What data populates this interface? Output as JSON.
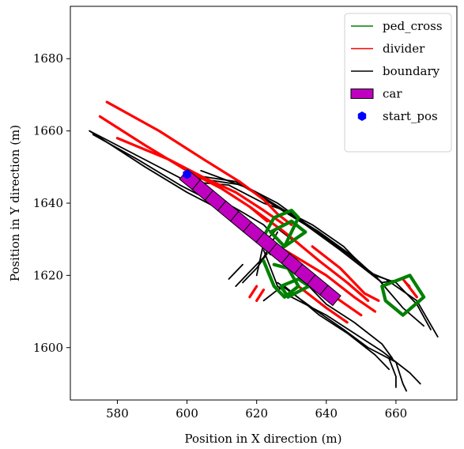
{
  "chart_data": {
    "type": "line",
    "title": "",
    "xlabel": "Position in X direction (m)",
    "ylabel": "Position in Y direction (m)",
    "xlim": [
      566.5,
      677.5
    ],
    "ylim": [
      1585.5,
      1694.5
    ],
    "xticks": [
      580,
      600,
      620,
      640,
      660
    ],
    "yticks": [
      1600,
      1620,
      1640,
      1660,
      1680
    ],
    "grid": false,
    "legend": {
      "placement": "top-right",
      "entries": [
        {
          "name": "ped_cross",
          "kind": "line",
          "color": "#008000"
        },
        {
          "name": "divider",
          "kind": "line",
          "color": "#ff0000"
        },
        {
          "name": "boundary",
          "kind": "line",
          "color": "#000000"
        },
        {
          "name": "car",
          "kind": "patch",
          "color": "#c000c0"
        },
        {
          "name": "start_pos",
          "kind": "marker",
          "color": "#0000ff"
        }
      ]
    },
    "series": [
      {
        "name": "boundary",
        "color": "#000000",
        "width": 1.8,
        "polylines": [
          [
            [
              572,
              1660
            ],
            [
              590,
              1651
            ],
            [
              600,
              1646
            ],
            [
              615,
              1638
            ],
            [
              622,
              1634
            ],
            [
              626,
              1630
            ]
          ],
          [
            [
              572,
              1660
            ],
            [
              588,
              1650
            ],
            [
              600,
              1643
            ],
            [
              612,
              1637
            ],
            [
              620,
              1633
            ]
          ],
          [
            [
              573,
              1659
            ],
            [
              586,
              1652
            ],
            [
              598,
              1645
            ],
            [
              610,
              1639
            ]
          ],
          [
            [
              600,
              1646
            ],
            [
              612,
              1645
            ],
            [
              622,
              1640
            ],
            [
              628,
              1638
            ],
            [
              636,
              1634
            ],
            [
              645,
              1628
            ],
            [
              652,
              1621
            ],
            [
              656,
              1618
            ],
            [
              662,
              1619
            ]
          ],
          [
            [
              600,
              1648
            ],
            [
              614,
              1646
            ],
            [
              624,
              1640
            ],
            [
              634,
              1634
            ],
            [
              644,
              1627
            ],
            [
              652,
              1621
            ],
            [
              657,
              1619
            ],
            [
              666,
              1613
            ],
            [
              672,
              1603
            ]
          ],
          [
            [
              602,
              1647
            ],
            [
              616,
              1645
            ],
            [
              626,
              1640
            ],
            [
              636,
              1633
            ],
            [
              646,
              1626
            ],
            [
              654,
              1620
            ],
            [
              660,
              1618
            ],
            [
              666,
              1612
            ],
            [
              670,
              1605
            ]
          ],
          [
            [
              604,
              1649
            ],
            [
              618,
              1644
            ],
            [
              628,
              1638
            ],
            [
              638,
              1632
            ],
            [
              648,
              1625
            ],
            [
              656,
              1618
            ]
          ],
          [
            [
              622,
              1627
            ],
            [
              626,
              1617
            ],
            [
              630,
              1614
            ],
            [
              640,
              1609
            ],
            [
              648,
              1604
            ],
            [
              656,
              1599
            ],
            [
              664,
              1593
            ],
            [
              667,
              1590
            ]
          ],
          [
            [
              626,
              1618
            ],
            [
              636,
              1611
            ],
            [
              645,
              1605
            ],
            [
              652,
              1600
            ],
            [
              660,
              1596
            ]
          ],
          [
            [
              628,
              1617
            ],
            [
              638,
              1609
            ],
            [
              646,
              1604
            ],
            [
              654,
              1598
            ],
            [
              658,
              1594
            ]
          ],
          [
            [
              633,
              1619
            ],
            [
              640,
              1612
            ],
            [
              648,
              1607
            ],
            [
              656,
              1601
            ],
            [
              659,
              1597
            ]
          ],
          [
            [
              614,
              1617
            ],
            [
              618,
              1621
            ],
            [
              622,
              1625
            ],
            [
              626,
              1632
            ]
          ],
          [
            [
              616,
              1618
            ],
            [
              620,
              1622
            ],
            [
              623,
              1626
            ]
          ],
          [
            [
              612,
              1619
            ],
            [
              616,
              1623
            ]
          ],
          [
            [
              622,
              1613
            ],
            [
              626,
              1616
            ],
            [
              628,
              1617
            ]
          ],
          [
            [
              658,
              1597
            ],
            [
              660,
              1592
            ],
            [
              660,
              1589
            ]
          ],
          [
            [
              660,
              1596
            ],
            [
              662,
              1590
            ],
            [
              663,
              1588
            ]
          ],
          [
            [
              620,
              1620
            ],
            [
              622,
              1629
            ],
            [
              626,
              1633
            ],
            [
              630,
              1630
            ]
          ],
          [
            [
              662,
              1619
            ],
            [
              664,
              1617
            ]
          ],
          [
            [
              654,
              1620
            ],
            [
              662,
              1611
            ],
            [
              668,
              1606
            ]
          ]
        ]
      },
      {
        "name": "divider",
        "color": "#ff0000",
        "width": 3.2,
        "polylines": [
          [
            [
              577,
              1668
            ],
            [
              592,
              1660
            ],
            [
              605,
              1652
            ],
            [
              615,
              1646
            ],
            [
              622,
              1641
            ],
            [
              626,
              1637
            ],
            [
              630,
              1634
            ]
          ],
          [
            [
              575,
              1664
            ],
            [
              588,
              1656
            ],
            [
              600,
              1649
            ],
            [
              610,
              1644
            ],
            [
              618,
              1639
            ],
            [
              623,
              1635
            ]
          ],
          [
            [
              580,
              1658
            ],
            [
              595,
              1652
            ],
            [
              605,
              1647
            ],
            [
              614,
              1643
            ],
            [
              622,
              1638
            ],
            [
              628,
              1634
            ]
          ],
          [
            [
              618,
              1639
            ],
            [
              628,
              1632
            ],
            [
              638,
              1624
            ],
            [
              646,
              1618
            ],
            [
              652,
              1613
            ]
          ],
          [
            [
              627,
              1625
            ],
            [
              636,
              1619
            ],
            [
              644,
              1613
            ],
            [
              650,
              1609
            ]
          ],
          [
            [
              628,
              1627
            ],
            [
              640,
              1620
            ],
            [
              648,
              1614
            ],
            [
              654,
              1610
            ]
          ],
          [
            [
              636,
              1628
            ],
            [
              644,
              1622
            ],
            [
              651,
              1615
            ],
            [
              655,
              1613
            ]
          ],
          [
            [
              632,
              1617
            ],
            [
              640,
              1611
            ],
            [
              646,
              1607
            ]
          ],
          [
            [
              618,
              1614
            ],
            [
              620,
              1617
            ]
          ],
          [
            [
              620,
              1613
            ],
            [
              622,
              1616
            ]
          ],
          [
            [
              662,
              1619
            ],
            [
              666,
              1614
            ]
          ]
        ]
      },
      {
        "name": "ped_cross",
        "color": "#008000",
        "width": 4.2,
        "polylines": [
          [
            [
              621,
              1629
            ],
            [
              625,
              1636
            ],
            [
              630,
              1638
            ],
            [
              632,
              1636
            ],
            [
              628,
              1628
            ],
            [
              624,
              1626
            ],
            [
              621,
              1629
            ]
          ],
          [
            [
              624,
              1632
            ],
            [
              630,
              1635
            ],
            [
              634,
              1632
            ],
            [
              628,
              1628
            ],
            [
              624,
              1632
            ]
          ],
          [
            [
              622,
              1624
            ],
            [
              625,
              1617
            ],
            [
              628,
              1614
            ],
            [
              632,
              1617
            ],
            [
              629,
              1622
            ],
            [
              625,
              1623
            ]
          ],
          [
            [
              627,
              1617
            ],
            [
              632,
              1619
            ],
            [
              635,
              1617
            ],
            [
              629,
              1614
            ],
            [
              627,
              1617
            ]
          ],
          [
            [
              656,
              1617
            ],
            [
              664,
              1620
            ],
            [
              668,
              1614
            ],
            [
              662,
              1609
            ],
            [
              657,
              1613
            ],
            [
              656,
              1617
            ]
          ]
        ]
      }
    ],
    "car": {
      "name": "car",
      "color": "#c000c0",
      "start": [
        599,
        1648
      ],
      "end": [
        643,
        1613
      ],
      "segments": 12
    },
    "start_pos": {
      "name": "start_pos",
      "x": 600,
      "y": 1648,
      "color": "#0000ff"
    }
  }
}
